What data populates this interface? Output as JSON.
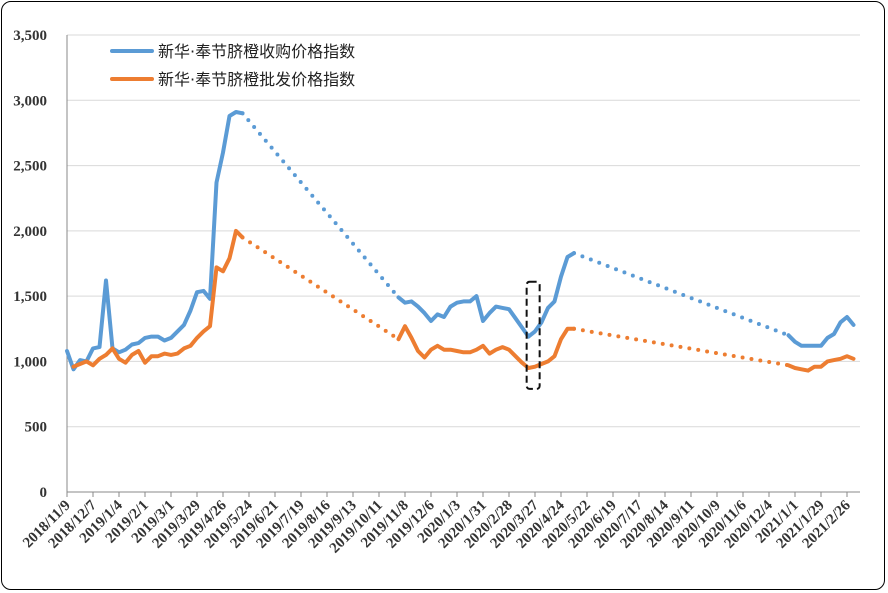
{
  "chart_data": {
    "type": "line",
    "title": "",
    "xlabel": "",
    "ylabel": "",
    "ylim": [
      0,
      3500
    ],
    "y_ticks": [
      "0",
      "500",
      "1,000",
      "1,500",
      "2,000",
      "2,500",
      "3,000",
      "3,500"
    ],
    "y_tick_values": [
      0,
      500,
      1000,
      1500,
      2000,
      2500,
      3000,
      3500
    ],
    "grid": "horizontal",
    "legend": "top-left",
    "x_start": "2018/11/9",
    "x_end": "2021/3/12",
    "x_tick_labels": [
      "2018/11/9",
      "2018/12/7",
      "2019/1/4",
      "2019/2/1",
      "2019/3/1",
      "2019/3/29",
      "2019/4/26",
      "2019/5/24",
      "2019/6/21",
      "2019/7/19",
      "2019/8/16",
      "2019/9/13",
      "2019/10/11",
      "2019/11/8",
      "2019/12/6",
      "2020/1/3",
      "2020/1/31",
      "2020/2/28",
      "2020/3/27",
      "2020/4/24",
      "2020/5/22",
      "2020/6/19",
      "2020/7/17",
      "2020/8/14",
      "2020/9/11",
      "2020/10/9",
      "2020/11/6",
      "2020/12/4",
      "2021/1/1",
      "2021/1/29",
      "2021/2/26"
    ],
    "annotation": {
      "type": "dashed-box",
      "x_from": "2020/3/18",
      "x_to": "2020/4/1",
      "y_from": 790,
      "y_to": 1610
    },
    "series": [
      {
        "name": "新华·奉节脐橙收购价格指数",
        "color": "#5B9BD5",
        "segments": [
          {
            "style": "solid",
            "points": [
              [
                "2018/11/9",
                1080
              ],
              [
                "2018/11/16",
                940
              ],
              [
                "2018/11/23",
                1010
              ],
              [
                "2018/11/30",
                1000
              ],
              [
                "2018/12/7",
                1100
              ],
              [
                "2018/12/14",
                1110
              ],
              [
                "2018/12/21",
                1620
              ],
              [
                "2018/12/28",
                1100
              ],
              [
                "2019/1/4",
                1070
              ],
              [
                "2019/1/11",
                1090
              ],
              [
                "2019/1/18",
                1130
              ],
              [
                "2019/1/25",
                1140
              ],
              [
                "2019/2/1",
                1180
              ],
              [
                "2019/2/8",
                1190
              ],
              [
                "2019/2/15",
                1190
              ],
              [
                "2019/2/22",
                1160
              ],
              [
                "2019/3/1",
                1180
              ],
              [
                "2019/3/8",
                1230
              ],
              [
                "2019/3/15",
                1280
              ],
              [
                "2019/3/22",
                1390
              ],
              [
                "2019/3/29",
                1530
              ],
              [
                "2019/4/5",
                1540
              ],
              [
                "2019/4/12",
                1480
              ],
              [
                "2019/4/19",
                2370
              ],
              [
                "2019/4/26",
                2600
              ],
              [
                "2019/5/3",
                2880
              ],
              [
                "2019/5/10",
                2910
              ],
              [
                "2019/5/17",
                2900
              ]
            ]
          },
          {
            "style": "dotted",
            "points": [
              [
                "2019/5/17",
                2900
              ],
              [
                "2019/11/1",
                1490
              ]
            ]
          },
          {
            "style": "solid",
            "points": [
              [
                "2019/11/1",
                1490
              ],
              [
                "2019/11/8",
                1450
              ],
              [
                "2019/11/15",
                1460
              ],
              [
                "2019/11/22",
                1420
              ],
              [
                "2019/11/29",
                1370
              ],
              [
                "2019/12/6",
                1310
              ],
              [
                "2019/12/13",
                1360
              ],
              [
                "2019/12/20",
                1340
              ],
              [
                "2019/12/27",
                1420
              ],
              [
                "2020/1/3",
                1450
              ],
              [
                "2020/1/10",
                1460
              ],
              [
                "2020/1/17",
                1460
              ],
              [
                "2020/1/24",
                1500
              ],
              [
                "2020/1/31",
                1310
              ],
              [
                "2020/2/7",
                1370
              ],
              [
                "2020/2/14",
                1420
              ],
              [
                "2020/2/21",
                1410
              ],
              [
                "2020/2/28",
                1400
              ],
              [
                "2020/3/6",
                1330
              ],
              [
                "2020/3/13",
                1260
              ],
              [
                "2020/3/20",
                1190
              ],
              [
                "2020/3/27",
                1230
              ],
              [
                "2020/4/3",
                1300
              ],
              [
                "2020/4/10",
                1410
              ],
              [
                "2020/4/17",
                1460
              ],
              [
                "2020/4/24",
                1650
              ],
              [
                "2020/5/1",
                1800
              ],
              [
                "2020/5/8",
                1830
              ]
            ]
          },
          {
            "style": "dotted",
            "points": [
              [
                "2020/5/8",
                1830
              ],
              [
                "2020/12/25",
                1200
              ]
            ]
          },
          {
            "style": "solid",
            "points": [
              [
                "2020/12/25",
                1200
              ],
              [
                "2021/1/1",
                1150
              ],
              [
                "2021/1/8",
                1120
              ],
              [
                "2021/1/15",
                1120
              ],
              [
                "2021/1/22",
                1120
              ],
              [
                "2021/1/29",
                1120
              ],
              [
                "2021/2/5",
                1180
              ],
              [
                "2021/2/12",
                1210
              ],
              [
                "2021/2/19",
                1300
              ],
              [
                "2021/2/26",
                1340
              ],
              [
                "2021/3/5",
                1280
              ]
            ]
          }
        ]
      },
      {
        "name": "新华·奉节脐橙批发价格指数",
        "color": "#ED7D31",
        "segments": [
          {
            "style": "solid",
            "points": [
              [
                "2018/11/16",
                960
              ],
              [
                "2018/11/23",
                980
              ],
              [
                "2018/11/30",
                1000
              ],
              [
                "2018/12/7",
                970
              ],
              [
                "2018/12/14",
                1020
              ],
              [
                "2018/12/21",
                1050
              ],
              [
                "2018/12/28",
                1100
              ],
              [
                "2019/1/4",
                1020
              ],
              [
                "2019/1/11",
                990
              ],
              [
                "2019/1/18",
                1050
              ],
              [
                "2019/1/25",
                1080
              ],
              [
                "2019/2/1",
                990
              ],
              [
                "2019/2/8",
                1040
              ],
              [
                "2019/2/15",
                1040
              ],
              [
                "2019/2/22",
                1060
              ],
              [
                "2019/3/1",
                1050
              ],
              [
                "2019/3/8",
                1060
              ],
              [
                "2019/3/15",
                1100
              ],
              [
                "2019/3/22",
                1120
              ],
              [
                "2019/3/29",
                1180
              ],
              [
                "2019/4/5",
                1230
              ],
              [
                "2019/4/12",
                1270
              ],
              [
                "2019/4/19",
                1720
              ],
              [
                "2019/4/26",
                1690
              ],
              [
                "2019/5/3",
                1790
              ],
              [
                "2019/5/10",
                2000
              ],
              [
                "2019/5/17",
                1950
              ]
            ]
          },
          {
            "style": "dotted",
            "points": [
              [
                "2019/5/17",
                1950
              ],
              [
                "2019/11/1",
                1170
              ]
            ]
          },
          {
            "style": "solid",
            "points": [
              [
                "2019/11/1",
                1170
              ],
              [
                "2019/11/8",
                1270
              ],
              [
                "2019/11/15",
                1180
              ],
              [
                "2019/11/22",
                1080
              ],
              [
                "2019/11/29",
                1030
              ],
              [
                "2019/12/6",
                1090
              ],
              [
                "2019/12/13",
                1120
              ],
              [
                "2019/12/20",
                1090
              ],
              [
                "2019/12/27",
                1090
              ],
              [
                "2020/1/3",
                1080
              ],
              [
                "2020/1/10",
                1070
              ],
              [
                "2020/1/17",
                1070
              ],
              [
                "2020/1/24",
                1090
              ],
              [
                "2020/1/31",
                1120
              ],
              [
                "2020/2/7",
                1060
              ],
              [
                "2020/2/14",
                1090
              ],
              [
                "2020/2/21",
                1110
              ],
              [
                "2020/2/28",
                1090
              ],
              [
                "2020/3/6",
                1040
              ],
              [
                "2020/3/13",
                990
              ],
              [
                "2020/3/20",
                950
              ],
              [
                "2020/3/27",
                960
              ],
              [
                "2020/4/3",
                980
              ],
              [
                "2020/4/10",
                1000
              ],
              [
                "2020/4/17",
                1040
              ],
              [
                "2020/4/24",
                1170
              ],
              [
                "2020/5/1",
                1250
              ],
              [
                "2020/5/8",
                1250
              ]
            ]
          },
          {
            "style": "dotted",
            "points": [
              [
                "2020/5/8",
                1250
              ],
              [
                "2020/12/25",
                970
              ]
            ]
          },
          {
            "style": "solid",
            "points": [
              [
                "2020/12/25",
                970
              ],
              [
                "2021/1/1",
                950
              ],
              [
                "2021/1/8",
                940
              ],
              [
                "2021/1/15",
                930
              ],
              [
                "2021/1/22",
                960
              ],
              [
                "2021/1/29",
                960
              ],
              [
                "2021/2/5",
                1000
              ],
              [
                "2021/2/12",
                1010
              ],
              [
                "2021/2/19",
                1020
              ],
              [
                "2021/2/26",
                1040
              ],
              [
                "2021/3/5",
                1020
              ]
            ]
          }
        ]
      }
    ]
  }
}
